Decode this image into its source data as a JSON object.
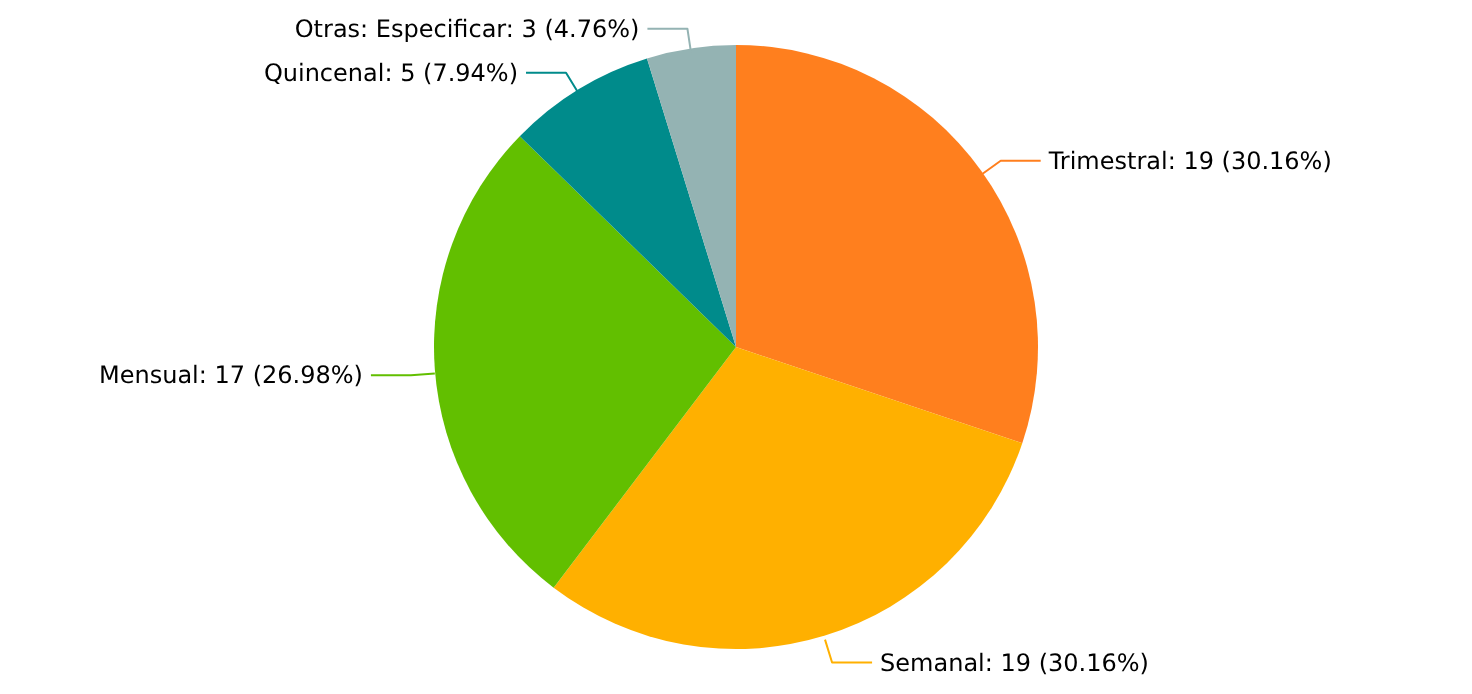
{
  "chart_data": {
    "type": "pie",
    "categories": [
      "Trimestral",
      "Semanal",
      "Mensual",
      "Quincenal",
      "Otras: Especificar"
    ],
    "values": [
      19,
      19,
      17,
      5,
      3
    ],
    "value_labels": [
      "19 (30.16%)",
      "19 (30.16%)",
      "17 (26.98%)",
      "5 (7.94%)",
      "3 (4.76%)"
    ],
    "colors": [
      "#ff7f1e",
      "#ffb000",
      "#62bf00",
      "#008b8b",
      "#94b3b3"
    ]
  }
}
